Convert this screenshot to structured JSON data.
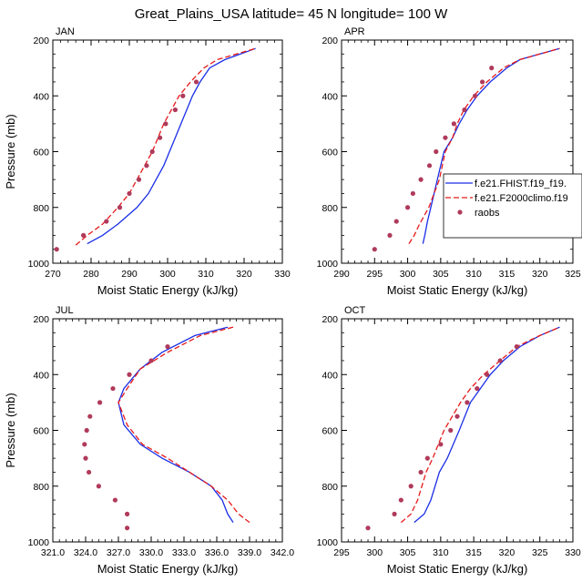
{
  "title": "Great_Plains_USA  latitude= 45 N longitude= 100 W",
  "colors": {
    "model1": "#1a2ee6",
    "model2": "#e61a1a",
    "obs": "#b03a5a"
  },
  "chart_data": [
    {
      "type": "line",
      "panel": "JAN",
      "xlabel": "Moist Static Energy (kJ/kg)",
      "ylabel": "Pressure (mb)",
      "xlim": [
        270,
        330
      ],
      "ylim": [
        200,
        1000
      ],
      "y_inverted": true,
      "xticks": [
        270,
        280,
        290,
        300,
        310,
        320,
        330
      ],
      "xtick_labels": [
        "270",
        "280",
        "290",
        "300",
        "310",
        "320",
        "330"
      ],
      "yticks": [
        200,
        400,
        600,
        800,
        1000
      ],
      "ytick_labels": [
        "200",
        "400",
        "600",
        "800",
        "1000"
      ],
      "legend": null,
      "series": [
        {
          "name": "f.e21.FHIST.f19_f19.",
          "style": "solid",
          "points": [
            [
              279,
              930
            ],
            [
              283,
              900
            ],
            [
              287,
              860
            ],
            [
              292,
              800
            ],
            [
              295,
              750
            ],
            [
              297,
              700
            ],
            [
              299,
              650
            ],
            [
              300.5,
              600
            ],
            [
              302,
              550
            ],
            [
              303.5,
              500
            ],
            [
              305,
              450
            ],
            [
              306.5,
              400
            ],
            [
              308.5,
              350
            ],
            [
              311,
              300
            ],
            [
              315,
              270
            ],
            [
              321,
              240
            ],
            [
              323,
              230
            ]
          ]
        },
        {
          "name": "f.e21.F2000climo.f19",
          "style": "dashed",
          "points": [
            [
              276,
              935
            ],
            [
              279,
              900
            ],
            [
              283,
              860
            ],
            [
              287,
              800
            ],
            [
              290,
              750
            ],
            [
              292,
              700
            ],
            [
              294,
              650
            ],
            [
              296,
              600
            ],
            [
              297.5,
              550
            ],
            [
              299,
              500
            ],
            [
              301,
              450
            ],
            [
              303,
              400
            ],
            [
              306,
              350
            ],
            [
              309.5,
              300
            ],
            [
              313,
              270
            ],
            [
              318,
              250
            ],
            [
              323,
              230
            ]
          ]
        },
        {
          "name": "raobs",
          "style": "markers",
          "points": [
            [
              271,
              950
            ],
            [
              278,
              900
            ],
            [
              284,
              850
            ],
            [
              287.5,
              800
            ],
            [
              290,
              750
            ],
            [
              292.5,
              700
            ],
            [
              294.5,
              650
            ],
            [
              296,
              600
            ],
            [
              298,
              550
            ],
            [
              299.5,
              500
            ],
            [
              302,
              450
            ],
            [
              304,
              400
            ],
            [
              307.5,
              350
            ]
          ]
        }
      ]
    },
    {
      "type": "line",
      "panel": "APR",
      "xlabel": "Moist Static Energy (kJ/kg)",
      "ylabel": "",
      "xlim": [
        290,
        325
      ],
      "ylim": [
        200,
        1000
      ],
      "y_inverted": true,
      "xticks": [
        290,
        295,
        300,
        305,
        310,
        315,
        320,
        325
      ],
      "xtick_labels": [
        "290",
        "295",
        "300",
        "305",
        "310",
        "315",
        "320",
        "325"
      ],
      "yticks": [
        200,
        400,
        600,
        800,
        1000
      ],
      "ytick_labels": [
        "200",
        "400",
        "600",
        "800",
        "1000"
      ],
      "legend": "right",
      "series": [
        {
          "name": "f.e21.FHIST.f19_f19.",
          "style": "solid",
          "points": [
            [
              302.3,
              930
            ],
            [
              302.6,
              900
            ],
            [
              303,
              850
            ],
            [
              303.5,
              800
            ],
            [
              304.5,
              700
            ],
            [
              305.5,
              600
            ],
            [
              306.8,
              550
            ],
            [
              307.8,
              500
            ],
            [
              309,
              450
            ],
            [
              310.5,
              400
            ],
            [
              312.5,
              350
            ],
            [
              315,
              300
            ],
            [
              317,
              270
            ],
            [
              320,
              250
            ],
            [
              323,
              230
            ]
          ]
        },
        {
          "name": "f.e21.F2000climo.f19",
          "style": "dashed",
          "points": [
            [
              300.2,
              930
            ],
            [
              301,
              900
            ],
            [
              301.8,
              860
            ],
            [
              303.2,
              800
            ],
            [
              304,
              750
            ],
            [
              304.8,
              700
            ],
            [
              305.7,
              600
            ],
            [
              306.8,
              550
            ],
            [
              307.5,
              500
            ],
            [
              308.5,
              450
            ],
            [
              310,
              400
            ],
            [
              312,
              350
            ],
            [
              314.5,
              300
            ],
            [
              317,
              270
            ],
            [
              320,
              250
            ],
            [
              323,
              230
            ]
          ]
        },
        {
          "name": "raobs",
          "style": "markers",
          "points": [
            [
              295,
              950
            ],
            [
              297.3,
              900
            ],
            [
              298.3,
              850
            ],
            [
              300,
              800
            ],
            [
              300.8,
              750
            ],
            [
              302,
              700
            ],
            [
              303.3,
              650
            ],
            [
              304.3,
              600
            ],
            [
              305.7,
              550
            ],
            [
              307,
              500
            ],
            [
              308.6,
              450
            ],
            [
              310.2,
              400
            ],
            [
              311.3,
              350
            ],
            [
              312.7,
              300
            ]
          ]
        }
      ]
    },
    {
      "type": "line",
      "panel": "JUL",
      "xlabel": "Moist Static Energy (kJ/kg)",
      "ylabel": "Pressure (mb)",
      "xlim": [
        321,
        342
      ],
      "ylim": [
        200,
        1000
      ],
      "y_inverted": true,
      "xticks": [
        321,
        324,
        327,
        330,
        333,
        336,
        339,
        342
      ],
      "xtick_labels": [
        "321.0",
        "324.0",
        "327.0",
        "330.0",
        "333.0",
        "336.0",
        "339.0",
        "342.0"
      ],
      "yticks": [
        200,
        400,
        600,
        800,
        1000
      ],
      "ytick_labels": [
        "200",
        "400",
        "600",
        "800",
        "1000"
      ],
      "legend": null,
      "series": [
        {
          "name": "f.e21.FHIST.f19_f19.",
          "style": "solid",
          "points": [
            [
              337,
              230
            ],
            [
              334,
              260
            ],
            [
              331,
              320
            ],
            [
              329,
              380
            ],
            [
              327.5,
              450
            ],
            [
              327,
              500
            ],
            [
              327.5,
              580
            ],
            [
              329,
              650
            ],
            [
              331,
              700
            ],
            [
              333.5,
              750
            ],
            [
              335.5,
              800
            ],
            [
              336.5,
              850
            ],
            [
              337,
              900
            ],
            [
              337.5,
              930
            ]
          ]
        },
        {
          "name": "f.e21.F2000climo.f19",
          "style": "dashed",
          "points": [
            [
              337.5,
              230
            ],
            [
              334.5,
              260
            ],
            [
              331.5,
              320
            ],
            [
              329,
              380
            ],
            [
              327.8,
              450
            ],
            [
              327,
              500
            ],
            [
              327.8,
              580
            ],
            [
              329.2,
              650
            ],
            [
              331.5,
              700
            ],
            [
              333.5,
              750
            ],
            [
              335.5,
              800
            ],
            [
              337,
              850
            ],
            [
              338,
              900
            ],
            [
              339,
              930
            ]
          ]
        },
        {
          "name": "raobs",
          "style": "markers",
          "points": [
            [
              331.5,
              300
            ],
            [
              330,
              350
            ],
            [
              328,
              400
            ],
            [
              326.5,
              450
            ],
            [
              325.3,
              500
            ],
            [
              324.4,
              550
            ],
            [
              324.1,
              600
            ],
            [
              323.9,
              650
            ],
            [
              324,
              700
            ],
            [
              324.3,
              750
            ],
            [
              325.2,
              800
            ],
            [
              326.7,
              850
            ],
            [
              327.8,
              900
            ],
            [
              327.8,
              950
            ]
          ]
        }
      ]
    },
    {
      "type": "line",
      "panel": "OCT",
      "xlabel": "Moist Static Energy (kJ/kg)",
      "ylabel": "",
      "xlim": [
        295,
        330
      ],
      "ylim": [
        200,
        1000
      ],
      "y_inverted": true,
      "xticks": [
        295,
        300,
        305,
        310,
        315,
        320,
        325,
        330
      ],
      "xtick_labels": [
        "295",
        "300",
        "305",
        "310",
        "315",
        "320",
        "325",
        "330"
      ],
      "yticks": [
        200,
        400,
        600,
        800,
        1000
      ],
      "ytick_labels": [
        "200",
        "400",
        "600",
        "800",
        "1000"
      ],
      "legend": null,
      "series": [
        {
          "name": "f.e21.FHIST.f19_f19.",
          "style": "solid",
          "points": [
            [
              306,
              930
            ],
            [
              307.5,
              900
            ],
            [
              308.5,
              850
            ],
            [
              309.8,
              750
            ],
            [
              311,
              700
            ],
            [
              312.8,
              600
            ],
            [
              314.5,
              500
            ],
            [
              316,
              450
            ],
            [
              317.5,
              400
            ],
            [
              319.5,
              350
            ],
            [
              322,
              300
            ],
            [
              325,
              260
            ],
            [
              328,
              230
            ]
          ]
        },
        {
          "name": "f.e21.F2000climo.f19",
          "style": "dashed",
          "points": [
            [
              304,
              930
            ],
            [
              305.5,
              900
            ],
            [
              306.5,
              850
            ],
            [
              307.8,
              750
            ],
            [
              308.8,
              700
            ],
            [
              310.5,
              600
            ],
            [
              313,
              500
            ],
            [
              314.5,
              450
            ],
            [
              316.5,
              400
            ],
            [
              319,
              350
            ],
            [
              321.5,
              300
            ],
            [
              325,
              260
            ],
            [
              328,
              230
            ]
          ]
        },
        {
          "name": "raobs",
          "style": "markers",
          "points": [
            [
              299,
              950
            ],
            [
              303,
              900
            ],
            [
              304,
              850
            ],
            [
              305.5,
              800
            ],
            [
              307,
              750
            ],
            [
              308,
              700
            ],
            [
              310,
              650
            ],
            [
              311.5,
              600
            ],
            [
              312.5,
              550
            ],
            [
              314,
              500
            ],
            [
              315.5,
              450
            ],
            [
              317,
              400
            ],
            [
              319,
              350
            ],
            [
              321.5,
              300
            ]
          ]
        }
      ]
    }
  ]
}
